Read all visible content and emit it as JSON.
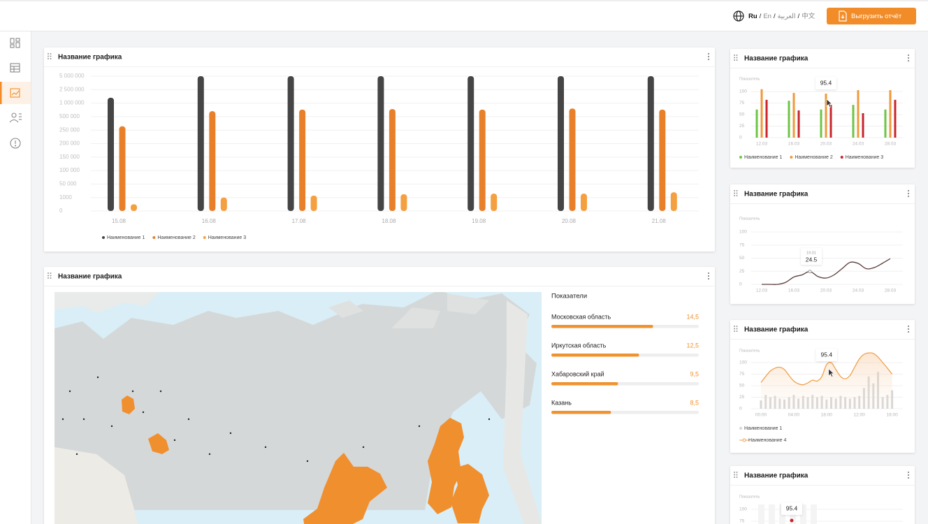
{
  "header": {
    "languages": [
      "Ru",
      "En",
      "العربية",
      "中文"
    ],
    "separator": "/",
    "export_button": "Выгрузить отчёт"
  },
  "chart_data": [
    {
      "type": "bar",
      "title": "Название графика",
      "y_scale": "tick-spaced",
      "categories": [
        "15.08",
        "16.08",
        "17.08",
        "18.08",
        "19.08",
        "20.08",
        "21.08"
      ],
      "ylim": [
        0,
        5000000
      ],
      "yticks": [
        {
          "value": 5000000,
          "label": "5 000 000"
        },
        {
          "value": 2500000,
          "label": "2 500 000"
        },
        {
          "value": 1000000,
          "label": "1 000 000"
        },
        {
          "value": 500000,
          "label": "500 000"
        },
        {
          "value": 250000,
          "label": "250 000"
        },
        {
          "value": 200000,
          "label": "200 000"
        },
        {
          "value": 150000,
          "label": "150 000"
        },
        {
          "value": 100000,
          "label": "100 000"
        },
        {
          "value": 50000,
          "label": "50 000"
        },
        1000,
        0
      ],
      "grid": true,
      "legend": "bottom-left",
      "series": [
        {
          "name": "Наименование 1",
          "color": "#454545",
          "values": [
            1600000,
            5000000,
            5000000,
            5000000,
            5000000,
            5000000,
            5000000
          ]
        },
        {
          "name": "Наименование 2",
          "color": "#e8802a",
          "values": [
            320000,
            700000,
            760000,
            780000,
            760000,
            800000,
            760000
          ]
        },
        {
          "name": "Наименование 3",
          "color": "#f5a040",
          "values": [
            500,
            1000,
            8000,
            13000,
            15000,
            15000,
            20000
          ]
        }
      ]
    },
    {
      "type": "bar",
      "title": "Название графика",
      "y_label": "Показатель",
      "categories": [
        "12.03",
        "16.03",
        "20.03",
        "24.03",
        "28.03"
      ],
      "ylim": [
        0,
        110
      ],
      "yticks": [
        0,
        25,
        50,
        75,
        100
      ],
      "grid": true,
      "legend": "bottom-left",
      "tooltip": {
        "series": 1,
        "index": 2
      },
      "series": [
        {
          "name": "Наименование 1",
          "color": "#6cc644",
          "values": [
            61,
            80,
            61,
            71,
            61
          ]
        },
        {
          "name": "Наименование 2",
          "color": "#f0993a",
          "values": [
            105,
            97,
            95.4,
            103,
            103
          ]
        },
        {
          "name": "Наименование 3",
          "color": "#c8242b",
          "values": [
            82,
            59,
            71,
            53,
            82
          ]
        }
      ]
    },
    {
      "type": "line",
      "title": "Название графика",
      "y_label": "Показатель",
      "categories": [
        "12.03",
        null,
        null,
        null,
        "16.03",
        null,
        null,
        null,
        "20.03",
        null,
        null,
        null,
        "24.03",
        null,
        null,
        null,
        "28.03"
      ],
      "values": [
        0,
        0,
        0,
        4,
        14,
        18,
        24.5,
        15,
        12,
        18,
        30,
        42,
        40,
        30,
        32,
        40,
        49
      ],
      "color": "#5b3b3b",
      "ylim": [
        0,
        100
      ],
      "yticks": [
        0,
        25,
        50,
        75,
        100
      ],
      "grid": true,
      "tooltip": {
        "date": "19.01",
        "index": 6
      }
    },
    {
      "type": "combo",
      "title": "Название графика",
      "y_label": "Показатель",
      "categories": [
        "00:00",
        null,
        null,
        null,
        null,
        null,
        null,
        "04:00",
        null,
        null,
        null,
        null,
        null,
        null,
        "18:00",
        null,
        null,
        null,
        null,
        null,
        null,
        "12:00",
        null,
        null,
        null,
        null,
        null,
        null,
        "16:00"
      ],
      "ylim": [
        0,
        125
      ],
      "yticks": [
        0,
        25,
        50,
        75,
        100
      ],
      "grid": true,
      "legend": "bottom-left",
      "tooltip": {
        "series": 1,
        "index": 14
      },
      "series": [
        {
          "name": "Наименование 1",
          "type": "bar",
          "color": "#d6d6d6",
          "values": [
            18,
            30,
            25,
            28,
            22,
            20,
            25,
            30,
            22,
            28,
            25,
            30,
            25,
            28,
            20,
            25,
            22,
            28,
            25,
            22,
            25,
            28,
            45,
            70,
            55,
            80,
            25,
            30,
            40
          ]
        },
        {
          "name": "Наименование 4",
          "type": "line",
          "color": "#f0a04b",
          "values": [
            57,
            70,
            82,
            88,
            90,
            85,
            72,
            60,
            54,
            52,
            56,
            62,
            60,
            70,
            95.4,
            100,
            85,
            70,
            65,
            72,
            90,
            108,
            118,
            121,
            120,
            112,
            100,
            88,
            75
          ]
        }
      ]
    },
    {
      "type": "bar",
      "title": "Название графика",
      "y_label": "Показатель",
      "ylim": [
        0,
        110
      ],
      "yticks": [
        75,
        100
      ],
      "grid": true,
      "annotation": "95.4"
    },
    {
      "type": "hbar",
      "title": "Название графика",
      "subtitle": "Показатели",
      "categories": [
        "Московская область",
        "Иркутская область",
        "Хабаровский край",
        "Казань"
      ],
      "values": [
        14.5,
        12.5,
        9.5,
        8.5
      ],
      "value_labels": [
        "14,5",
        "12,5",
        "9,5",
        "8,5"
      ],
      "xlim": [
        0,
        21
      ],
      "color": "#f0922e"
    }
  ]
}
